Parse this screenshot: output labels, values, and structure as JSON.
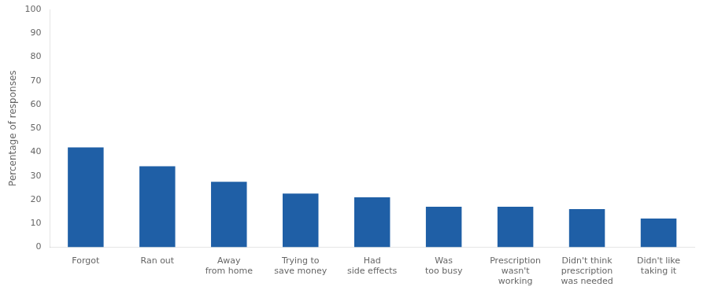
{
  "chart_data": {
    "type": "bar",
    "categories": [
      "Forgot",
      "Ran out",
      "Away\nfrom home",
      "Trying to\nsave money",
      "Had\nside effects",
      "Was\ntoo busy",
      "Prescription\nwasn't\nworking",
      "Didn't think\nprescription\nwas needed",
      "Didn't like\ntaking it"
    ],
    "values": [
      42,
      34,
      27.5,
      22.5,
      21,
      17,
      17,
      16,
      12
    ],
    "color": "#1F5FA6",
    "ylabel": "Percentage of responses",
    "ylim": [
      0,
      100
    ],
    "yticks": [
      0,
      10,
      20,
      30,
      40,
      50,
      60,
      70,
      80,
      90,
      100
    ],
    "grid": false
  }
}
